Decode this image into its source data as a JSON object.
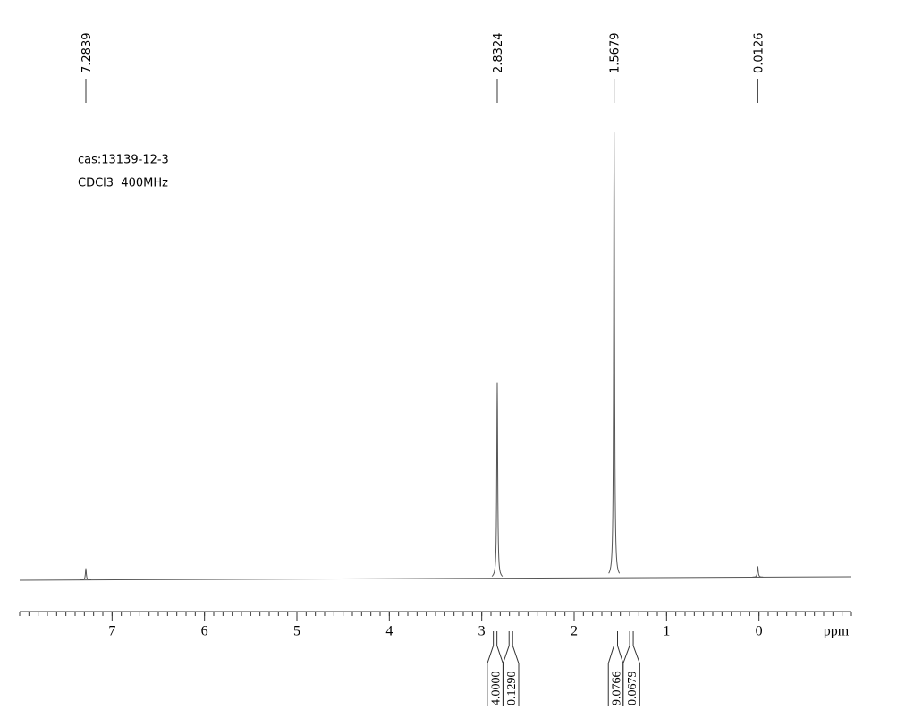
{
  "chart_data": {
    "type": "spectrum",
    "annotations": [
      "cas:13139-12-3",
      "CDCl3  400MHz"
    ],
    "xlabel": "ppm",
    "xlim": [
      8,
      -1
    ],
    "xticks": [
      7,
      6,
      5,
      4,
      3,
      2,
      1,
      0
    ],
    "color": "#555555",
    "peaks": {
      "x": [
        7.2839,
        2.8324,
        1.5679,
        0.0126
      ],
      "values": [
        2.6,
        44,
        100,
        2.4
      ]
    },
    "integrals": {
      "ranges": [
        [
          2.94,
          2.77
        ],
        [
          2.77,
          2.6
        ],
        [
          1.63,
          1.47
        ],
        [
          1.47,
          1.29
        ]
      ],
      "values": [
        4,
        0.129,
        9.0766,
        0.0679
      ],
      "value_labels": [
        "4.0000",
        "0.1290",
        "9.0766",
        "0.0679"
      ]
    }
  }
}
